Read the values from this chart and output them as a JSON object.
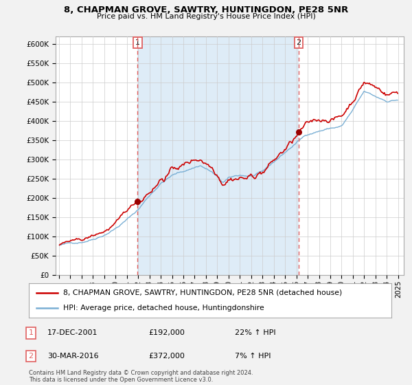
{
  "title": "8, CHAPMAN GROVE, SAWTRY, HUNTINGDON, PE28 5NR",
  "subtitle": "Price paid vs. HM Land Registry's House Price Index (HPI)",
  "hpi_label": "HPI: Average price, detached house, Huntingdonshire",
  "property_label": "8, CHAPMAN GROVE, SAWTRY, HUNTINGDON, PE28 5NR (detached house)",
  "sale1_date": "17-DEC-2001",
  "sale1_price": 192000,
  "sale1_hpi_pct": "22% ↑ HPI",
  "sale2_date": "30-MAR-2016",
  "sale2_price": 372000,
  "sale2_hpi_pct": "7% ↑ HPI",
  "copyright": "Contains HM Land Registry data © Crown copyright and database right 2024.\nThis data is licensed under the Open Government Licence v3.0.",
  "ylim": [
    0,
    620000
  ],
  "yticks": [
    0,
    50000,
    100000,
    150000,
    200000,
    250000,
    300000,
    350000,
    400000,
    450000,
    500000,
    550000,
    600000
  ],
  "background_color": "#f2f2f2",
  "plot_bg_color": "#ffffff",
  "property_color": "#cc0000",
  "hpi_color": "#7aafd4",
  "shade_color": "#d6e8f5",
  "vline_color": "#e06060",
  "marker1_year": 2001.96,
  "marker1_y": 192000,
  "marker2_year": 2016.25,
  "marker2_y": 372000,
  "xlim_left": 1994.7,
  "xlim_right": 2025.5
}
